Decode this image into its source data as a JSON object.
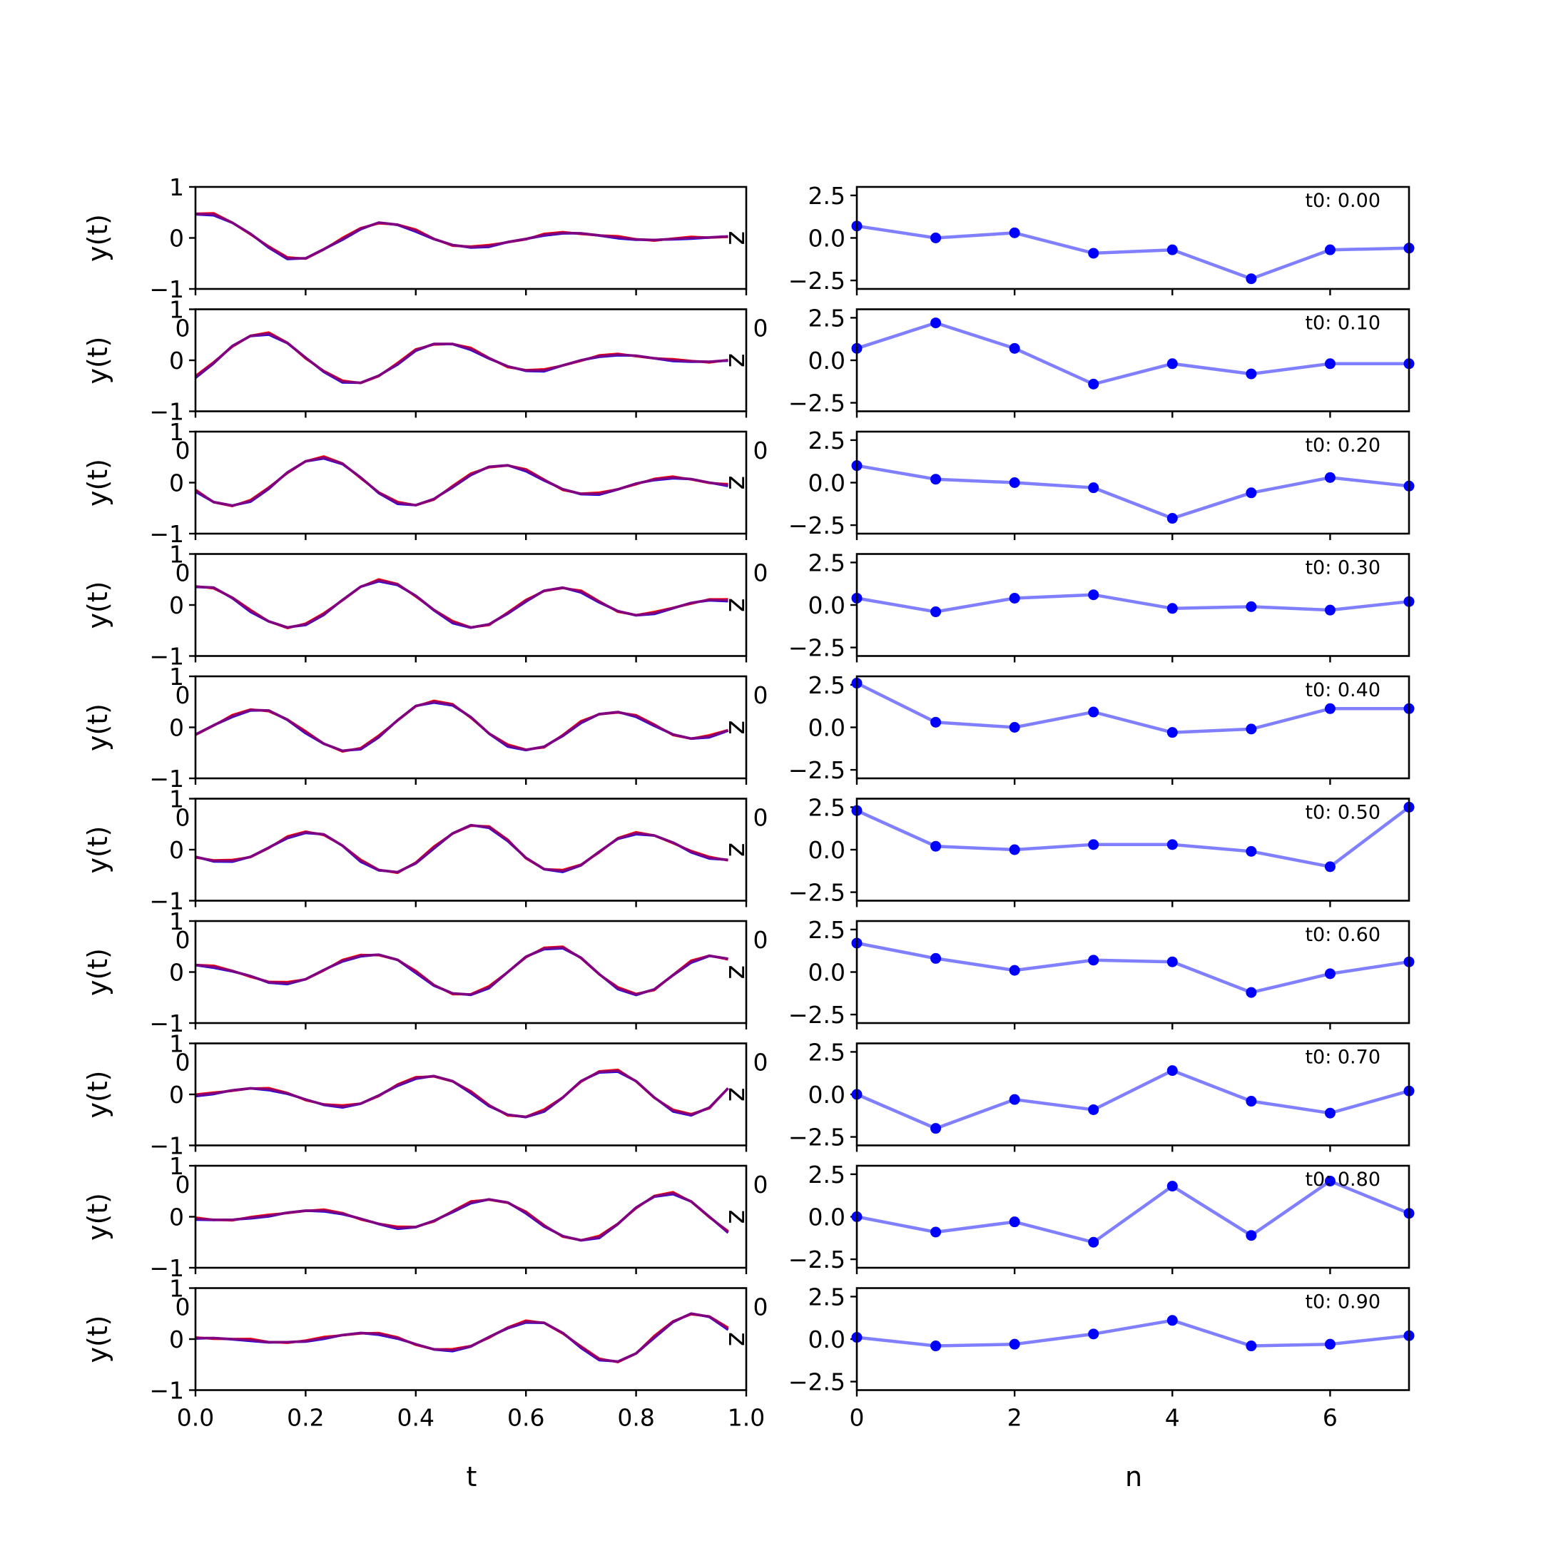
{
  "chart_data": {
    "type": "line",
    "layout": "10 rows x 2 columns of subplots",
    "left_column": {
      "xlabel": "t",
      "ylabel": "y(t)",
      "xlim": [
        0,
        1
      ],
      "ylim": [
        -1,
        1
      ],
      "x_ticks": [
        "0.0",
        "0.2",
        "0.4",
        "0.6",
        "0.8",
        "1.0"
      ],
      "y_ticks": [
        "1",
        "0",
        "−1"
      ],
      "right_axis_label": "z",
      "overlap_tick_label": "0",
      "series_colors": [
        "#ff0000",
        "#0000ff",
        "#800080"
      ]
    },
    "right_column": {
      "xlabel": "n",
      "xlim": [
        0,
        7
      ],
      "ylim": [
        -3,
        3
      ],
      "x_ticks": [
        "0",
        "2",
        "4",
        "6"
      ],
      "y_ticks": [
        "2.5",
        "0.0",
        "−2.5"
      ],
      "overlap_tick_label": "0",
      "line_color": "#0000ff",
      "line_alpha": 0.5,
      "marker_color": "#0000ff"
    },
    "panels": [
      {
        "label": "t0: 0.00",
        "t": [
          0,
          0.033,
          0.067,
          0.1,
          0.133,
          0.167,
          0.2,
          0.233,
          0.267,
          0.3,
          0.333,
          0.367,
          0.4,
          0.433,
          0.467,
          0.5,
          0.533,
          0.567,
          0.6,
          0.633,
          0.667,
          0.7,
          0.733,
          0.767,
          0.8,
          0.833,
          0.867,
          0.9,
          0.933,
          0.967
        ],
        "y": [
          0.47,
          0.46,
          0.3,
          0.08,
          -0.18,
          -0.4,
          -0.4,
          -0.22,
          -0.02,
          0.18,
          0.3,
          0.26,
          0.14,
          -0.02,
          -0.14,
          -0.18,
          -0.16,
          -0.08,
          -0.02,
          0.06,
          0.1,
          0.09,
          0.05,
          0.01,
          -0.03,
          -0.04,
          -0.02,
          0.0,
          0.01,
          0.03
        ],
        "n": [
          0,
          1,
          2,
          3,
          4,
          5,
          6,
          7
        ],
        "z": [
          0.7,
          0.0,
          0.3,
          -0.9,
          -0.7,
          -2.4,
          -0.7,
          -0.6
        ]
      },
      {
        "label": "t0: 0.10",
        "t": [
          0,
          0.033,
          0.067,
          0.1,
          0.133,
          0.167,
          0.2,
          0.233,
          0.267,
          0.3,
          0.333,
          0.367,
          0.4,
          0.433,
          0.467,
          0.5,
          0.533,
          0.567,
          0.6,
          0.633,
          0.667,
          0.7,
          0.733,
          0.767,
          0.8,
          0.833,
          0.867,
          0.9,
          0.933,
          0.967
        ],
        "y": [
          -0.33,
          -0.05,
          0.28,
          0.48,
          0.52,
          0.34,
          0.05,
          -0.22,
          -0.42,
          -0.44,
          -0.3,
          -0.07,
          0.2,
          0.32,
          0.32,
          0.22,
          0.04,
          -0.12,
          -0.2,
          -0.2,
          -0.1,
          0.0,
          0.08,
          0.11,
          0.09,
          0.04,
          0.0,
          -0.02,
          -0.03,
          0.0
        ],
        "n": [
          0,
          1,
          2,
          3,
          4,
          5,
          6,
          7
        ],
        "z": [
          0.7,
          2.2,
          0.7,
          -1.4,
          -0.2,
          -0.8,
          -0.2,
          -0.2
        ]
      },
      {
        "label": "t0: 0.20",
        "t": [
          0,
          0.033,
          0.067,
          0.1,
          0.133,
          0.167,
          0.2,
          0.233,
          0.267,
          0.3,
          0.333,
          0.367,
          0.4,
          0.433,
          0.467,
          0.5,
          0.533,
          0.567,
          0.6,
          0.633,
          0.667,
          0.7,
          0.733,
          0.767,
          0.8,
          0.833,
          0.867,
          0.9,
          0.933,
          0.967
        ],
        "y": [
          -0.16,
          -0.38,
          -0.45,
          -0.36,
          -0.11,
          0.2,
          0.42,
          0.49,
          0.37,
          0.1,
          -0.2,
          -0.4,
          -0.44,
          -0.32,
          -0.08,
          0.16,
          0.31,
          0.34,
          0.24,
          0.05,
          -0.13,
          -0.22,
          -0.22,
          -0.13,
          -0.02,
          0.06,
          0.1,
          0.07,
          0.0,
          -0.05
        ],
        "n": [
          0,
          1,
          2,
          3,
          4,
          5,
          6,
          7
        ],
        "z": [
          1.0,
          0.2,
          0.0,
          -0.3,
          -2.1,
          -0.6,
          0.3,
          -0.2
        ]
      },
      {
        "label": "t0: 0.30",
        "t": [
          0,
          0.033,
          0.067,
          0.1,
          0.133,
          0.167,
          0.2,
          0.233,
          0.267,
          0.3,
          0.333,
          0.367,
          0.4,
          0.433,
          0.467,
          0.5,
          0.533,
          0.567,
          0.6,
          0.633,
          0.667,
          0.7,
          0.733,
          0.767,
          0.8,
          0.833,
          0.867,
          0.9,
          0.933,
          0.967
        ],
        "y": [
          0.36,
          0.34,
          0.14,
          -0.12,
          -0.32,
          -0.44,
          -0.38,
          -0.18,
          0.1,
          0.36,
          0.48,
          0.4,
          0.18,
          -0.1,
          -0.34,
          -0.44,
          -0.38,
          -0.16,
          0.08,
          0.28,
          0.34,
          0.26,
          0.06,
          -0.12,
          -0.2,
          -0.16,
          -0.06,
          0.04,
          0.1,
          0.09
        ],
        "n": [
          0,
          1,
          2,
          3,
          4,
          5,
          6,
          7
        ],
        "z": [
          0.4,
          -0.4,
          0.4,
          0.6,
          -0.2,
          -0.1,
          -0.3,
          0.2
        ]
      },
      {
        "label": "t0: 0.40",
        "t": [
          0,
          0.033,
          0.067,
          0.1,
          0.133,
          0.167,
          0.2,
          0.233,
          0.267,
          0.3,
          0.333,
          0.367,
          0.4,
          0.433,
          0.467,
          0.5,
          0.533,
          0.567,
          0.6,
          0.633,
          0.667,
          0.7,
          0.733,
          0.767,
          0.8,
          0.833,
          0.867,
          0.9,
          0.933,
          0.967
        ],
        "y": [
          -0.14,
          0.04,
          0.22,
          0.34,
          0.33,
          0.15,
          -0.1,
          -0.32,
          -0.46,
          -0.42,
          -0.18,
          0.14,
          0.42,
          0.5,
          0.44,
          0.2,
          -0.12,
          -0.36,
          -0.44,
          -0.38,
          -0.16,
          0.1,
          0.26,
          0.3,
          0.22,
          0.04,
          -0.14,
          -0.22,
          -0.18,
          -0.06
        ],
        "n": [
          0,
          1,
          2,
          3,
          4,
          5,
          6,
          7
        ],
        "z": [
          2.6,
          0.3,
          0.0,
          0.9,
          -0.3,
          -0.1,
          1.1,
          1.1
        ]
      },
      {
        "label": "t0: 0.50",
        "t": [
          0,
          0.033,
          0.067,
          0.1,
          0.133,
          0.167,
          0.2,
          0.233,
          0.267,
          0.3,
          0.333,
          0.367,
          0.4,
          0.433,
          0.467,
          0.5,
          0.533,
          0.567,
          0.6,
          0.633,
          0.667,
          0.7,
          0.733,
          0.767,
          0.8,
          0.833,
          0.867,
          0.9,
          0.933,
          0.967
        ],
        "y": [
          -0.14,
          -0.22,
          -0.22,
          -0.14,
          0.04,
          0.24,
          0.34,
          0.3,
          0.08,
          -0.22,
          -0.4,
          -0.44,
          -0.26,
          0.04,
          0.32,
          0.48,
          0.44,
          0.18,
          -0.16,
          -0.38,
          -0.42,
          -0.3,
          -0.04,
          0.22,
          0.32,
          0.28,
          0.14,
          -0.04,
          -0.16,
          -0.2
        ],
        "n": [
          0,
          1,
          2,
          3,
          4,
          5,
          6,
          7
        ],
        "z": [
          2.3,
          0.2,
          0.0,
          0.3,
          0.3,
          -0.1,
          -1.0,
          2.5
        ]
      },
      {
        "label": "t0: 0.60",
        "t": [
          0,
          0.033,
          0.067,
          0.1,
          0.133,
          0.167,
          0.2,
          0.233,
          0.267,
          0.3,
          0.333,
          0.367,
          0.4,
          0.433,
          0.467,
          0.5,
          0.533,
          0.567,
          0.6,
          0.633,
          0.667,
          0.7,
          0.733,
          0.767,
          0.8,
          0.833,
          0.867,
          0.9,
          0.933,
          0.967
        ],
        "y": [
          0.14,
          0.1,
          0.02,
          -0.08,
          -0.2,
          -0.22,
          -0.14,
          0.04,
          0.22,
          0.32,
          0.34,
          0.24,
          0.0,
          -0.26,
          -0.42,
          -0.44,
          -0.3,
          0.0,
          0.3,
          0.46,
          0.48,
          0.28,
          -0.04,
          -0.32,
          -0.44,
          -0.34,
          -0.06,
          0.2,
          0.32,
          0.26
        ],
        "n": [
          0,
          1,
          2,
          3,
          4,
          5,
          6,
          7
        ],
        "z": [
          1.7,
          0.8,
          0.1,
          0.7,
          0.6,
          -1.2,
          -0.1,
          0.6
        ]
      },
      {
        "label": "t0: 0.70",
        "t": [
          0,
          0.033,
          0.067,
          0.1,
          0.133,
          0.167,
          0.2,
          0.233,
          0.267,
          0.3,
          0.333,
          0.367,
          0.4,
          0.433,
          0.467,
          0.5,
          0.533,
          0.567,
          0.6,
          0.633,
          0.667,
          0.7,
          0.733,
          0.767,
          0.8,
          0.833,
          0.867,
          0.9,
          0.933,
          0.967
        ],
        "y": [
          -0.02,
          0.02,
          0.08,
          0.12,
          0.1,
          0.02,
          -0.1,
          -0.2,
          -0.24,
          -0.18,
          -0.02,
          0.18,
          0.32,
          0.36,
          0.26,
          0.04,
          -0.22,
          -0.4,
          -0.44,
          -0.32,
          -0.06,
          0.26,
          0.44,
          0.46,
          0.26,
          -0.06,
          -0.32,
          -0.4,
          -0.26,
          0.12
        ],
        "n": [
          0,
          1,
          2,
          3,
          4,
          5,
          6,
          7
        ],
        "z": [
          0.0,
          -2.0,
          -0.3,
          -0.9,
          1.4,
          -0.4,
          -1.1,
          0.2
        ]
      },
      {
        "label": "t0: 0.80",
        "t": [
          0,
          0.033,
          0.067,
          0.1,
          0.133,
          0.167,
          0.2,
          0.233,
          0.267,
          0.3,
          0.333,
          0.367,
          0.4,
          0.433,
          0.467,
          0.5,
          0.533,
          0.567,
          0.6,
          0.633,
          0.667,
          0.7,
          0.733,
          0.767,
          0.8,
          0.833,
          0.867,
          0.9,
          0.933,
          0.967
        ],
        "y": [
          -0.04,
          -0.06,
          -0.06,
          -0.02,
          0.02,
          0.08,
          0.12,
          0.12,
          0.06,
          -0.04,
          -0.14,
          -0.22,
          -0.2,
          -0.08,
          0.1,
          0.28,
          0.34,
          0.28,
          0.08,
          -0.18,
          -0.38,
          -0.46,
          -0.4,
          -0.14,
          0.18,
          0.4,
          0.46,
          0.3,
          0.0,
          -0.3
        ],
        "n": [
          0,
          1,
          2,
          3,
          4,
          5,
          6,
          7
        ],
        "z": [
          0.0,
          -0.9,
          -0.3,
          -1.5,
          1.8,
          -1.1,
          2.1,
          0.2
        ]
      },
      {
        "label": "t0: 0.90",
        "t": [
          0,
          0.033,
          0.067,
          0.1,
          0.133,
          0.167,
          0.2,
          0.233,
          0.267,
          0.3,
          0.333,
          0.367,
          0.4,
          0.433,
          0.467,
          0.5,
          0.533,
          0.567,
          0.6,
          0.633,
          0.667,
          0.7,
          0.733,
          0.767,
          0.8,
          0.833,
          0.867,
          0.9,
          0.933,
          0.967
        ],
        "y": [
          0.02,
          0.02,
          0.0,
          -0.02,
          -0.06,
          -0.06,
          -0.04,
          0.02,
          0.08,
          0.12,
          0.1,
          0.02,
          -0.1,
          -0.2,
          -0.22,
          -0.14,
          0.04,
          0.22,
          0.34,
          0.32,
          0.12,
          -0.16,
          -0.4,
          -0.44,
          -0.28,
          0.04,
          0.34,
          0.5,
          0.44,
          0.2
        ],
        "n": [
          0,
          1,
          2,
          3,
          4,
          5,
          6,
          7
        ],
        "z": [
          0.1,
          -0.4,
          -0.3,
          0.3,
          1.1,
          -0.4,
          -0.3,
          0.2
        ]
      }
    ]
  }
}
